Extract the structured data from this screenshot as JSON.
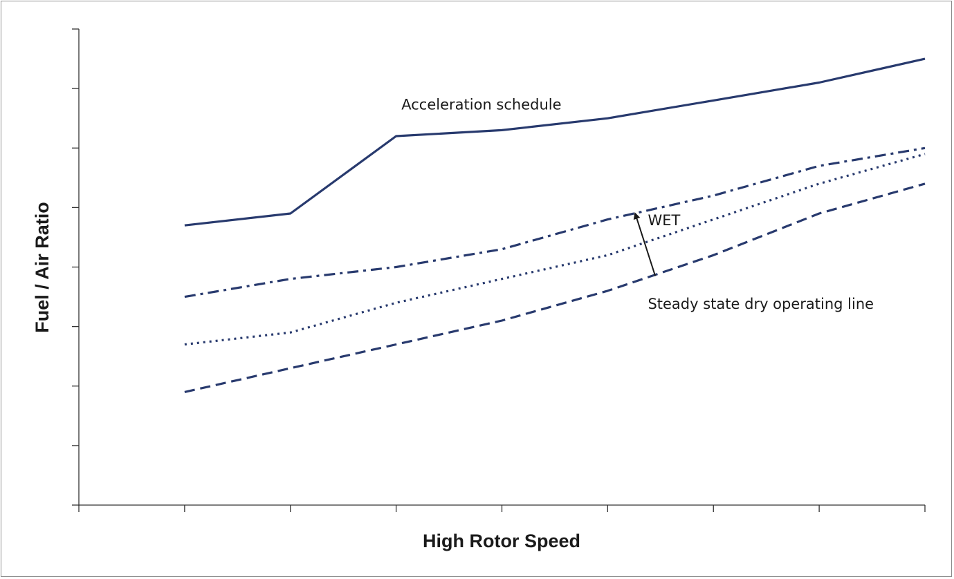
{
  "chart_data": {
    "type": "line",
    "xlabel": "High Rotor Speed",
    "ylabel": "Fuel / Air Ratio",
    "xlim": [
      0,
      8
    ],
    "ylim": [
      0,
      8
    ],
    "x_tick_count": 8,
    "y_tick_count": 8,
    "tick_labels_shown": false,
    "grid": false,
    "legend": "none",
    "series": [
      {
        "style": "solid",
        "x": [
          1,
          2,
          3,
          4,
          5,
          6,
          7,
          8
        ],
        "y": [
          4.7,
          4.9,
          6.2,
          6.3,
          6.5,
          6.8,
          7.1,
          7.5
        ]
      },
      {
        "style": "dashdot",
        "x": [
          1,
          2,
          3,
          4,
          5,
          6,
          7,
          8
        ],
        "y": [
          3.5,
          3.8,
          4.0,
          4.3,
          4.8,
          5.2,
          5.7,
          6.0
        ]
      },
      {
        "style": "dotted",
        "x": [
          1,
          2,
          3,
          4,
          5,
          6,
          7,
          8
        ],
        "y": [
          2.7,
          2.9,
          3.4,
          3.8,
          4.2,
          4.8,
          5.4,
          5.9
        ]
      },
      {
        "style": "dashed",
        "x": [
          1,
          2,
          3,
          4,
          5,
          6,
          7,
          8
        ],
        "y": [
          1.9,
          2.3,
          2.7,
          3.1,
          3.6,
          4.2,
          4.9,
          5.4
        ]
      }
    ],
    "annotations": [
      {
        "text": "Acceleration schedule",
        "x": 3.05,
        "y": 6.65
      },
      {
        "text": "WET",
        "x": 5.38,
        "y": 4.7
      },
      {
        "text": "Steady state dry operating line",
        "x": 5.38,
        "y": 3.3
      }
    ],
    "arrow": {
      "from": [
        5.45,
        3.85
      ],
      "to": [
        5.26,
        4.9
      ]
    },
    "line_color": "#283a6e"
  }
}
